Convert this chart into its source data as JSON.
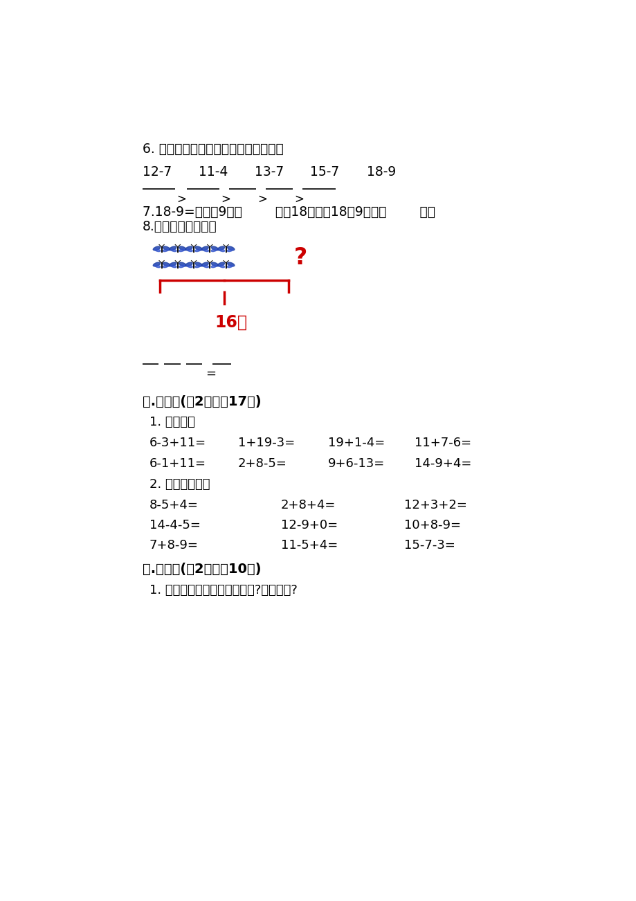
{
  "bg_color": "#ffffff",
  "text_color": "#000000",
  "red_color": "#cc0000",
  "section6_title": "6. 按得数的大小把下面的算式排一排。",
  "section6_exprs": [
    "12-7",
    "11-4",
    "13-7",
    "15-7",
    "18-9"
  ],
  "section7_text": "7.18-9=？想：9加（        ）得18，所以18冗9等于（        ）。",
  "section8_text": "8.看一看，填一填。",
  "bracket_label": "16个",
  "section4_title": "四.计算题(共2题，共17分)",
  "sub1_title": "1. 算一算。",
  "row1": [
    "6-3+11=",
    "1+19-3=",
    "19+1-4=",
    "11+7-6="
  ],
  "row2": [
    "6-1+11=",
    "2+8-5=",
    "9+6-13=",
    "14-9+4="
  ],
  "sub2_title": "2. 计算下面各题",
  "calc_row1": [
    "8-5+4=",
    "2+8+4=",
    "12+3+2="
  ],
  "calc_row2": [
    "14-4-5=",
    "12-9+0=",
    "10+8-9="
  ],
  "calc_row3": [
    "7+8-9=",
    "11-5+4=",
    "15-7-3="
  ],
  "section5_title": "五.作图题(共2题，共10分)",
  "sub5_1": "1. 下面的图中有哪些平面图形?各有几个?"
}
